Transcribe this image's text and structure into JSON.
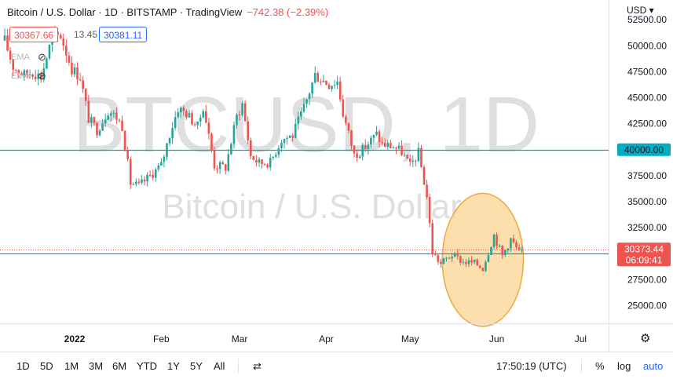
{
  "header": {
    "title": "Bitcoin / U.S. Dollar · 1D · BITSTAMP · TradingView",
    "change": "−742.38 (−2.39%)",
    "bid": "30367.66",
    "spread": "13.45",
    "ask": "30381.11",
    "currency": "USD ▾",
    "ma_labels": [
      "EMA",
      "EMA"
    ]
  },
  "watermark": {
    "symbol": "BTCUSD, 1D",
    "name": "Bitcoin / U.S. Dollar"
  },
  "bottom_bar": {
    "timeframes": [
      "1D",
      "5D",
      "1M",
      "3M",
      "6M",
      "YTD",
      "1Y",
      "5Y",
      "All"
    ],
    "clock": "17:50:19 (UTC)",
    "percent": "%",
    "log": "log",
    "auto": "auto"
  },
  "icons": {
    "eye": "eye-crossed-icon",
    "compare": "compare-icon",
    "settings": "gear-icon"
  },
  "colors": {
    "up": "#26a69a",
    "down": "#ef5350",
    "level": "#00acc1",
    "highlight_fill": "#fdd9a0",
    "highlight_stroke": "#f0a93e",
    "watermark": "#dcdcdc",
    "axis_text": "#131722",
    "price_label": "#ef5350"
  },
  "chart_data": {
    "type": "candlestick",
    "y_ticks": [
      25000,
      27500,
      30000,
      32500,
      35000,
      37500,
      40000,
      42500,
      45000,
      47500,
      50000,
      52500
    ],
    "y_tick_labels": [
      "25000.00",
      "27500.00",
      "30000.00",
      "32500.00",
      "35000.00",
      "37500.00",
      "40000.00",
      "42500.00",
      "45000.00",
      "47500.00",
      "50000.00",
      "52500.00"
    ],
    "ylim": [
      23300,
      54400
    ],
    "x_start": "2021-12-07",
    "x_end": "2022-07-11",
    "x_ticks": [
      {
        "date": "2022-01-01",
        "label": "2022"
      },
      {
        "date": "2022-02-01",
        "label": "Feb"
      },
      {
        "date": "2022-03-01",
        "label": "Mar"
      },
      {
        "date": "2022-04-01",
        "label": "Apr"
      },
      {
        "date": "2022-05-01",
        "label": "May"
      },
      {
        "date": "2022-06-01",
        "label": "Jun"
      },
      {
        "date": "2022-07-01",
        "label": "Jul"
      }
    ],
    "anchors": [
      [
        "2021-12-07",
        50500
      ],
      [
        "2021-12-10",
        48000
      ],
      [
        "2021-12-14",
        47200
      ],
      [
        "2021-12-17",
        47500
      ],
      [
        "2021-12-20",
        47000
      ],
      [
        "2021-12-24",
        50800
      ],
      [
        "2021-12-27",
        51000
      ],
      [
        "2021-12-31",
        47800
      ],
      [
        "2022-01-03",
        47000
      ],
      [
        "2022-01-06",
        43000
      ],
      [
        "2022-01-09",
        41900
      ],
      [
        "2022-01-11",
        42800
      ],
      [
        "2022-01-13",
        43800
      ],
      [
        "2022-01-16",
        43100
      ],
      [
        "2022-01-18",
        42300
      ],
      [
        "2022-01-21",
        36800
      ],
      [
        "2022-01-24",
        36500
      ],
      [
        "2022-01-28",
        37500
      ],
      [
        "2022-02-01",
        38500
      ],
      [
        "2022-02-04",
        41500
      ],
      [
        "2022-02-07",
        44000
      ],
      [
        "2022-02-10",
        43500
      ],
      [
        "2022-02-14",
        42200
      ],
      [
        "2022-02-16",
        44200
      ],
      [
        "2022-02-20",
        38500
      ],
      [
        "2022-02-24",
        38300
      ],
      [
        "2022-02-28",
        43200
      ],
      [
        "2022-03-02",
        44400
      ],
      [
        "2022-03-05",
        39400
      ],
      [
        "2022-03-08",
        38700
      ],
      [
        "2022-03-12",
        38800
      ],
      [
        "2022-03-16",
        41000
      ],
      [
        "2022-03-20",
        41400
      ],
      [
        "2022-03-24",
        44000
      ],
      [
        "2022-03-28",
        47200
      ],
      [
        "2022-04-02",
        46300
      ],
      [
        "2022-04-05",
        46600
      ],
      [
        "2022-04-07",
        43500
      ],
      [
        "2022-04-11",
        39500
      ],
      [
        "2022-04-14",
        40000
      ],
      [
        "2022-04-19",
        41500
      ],
      [
        "2022-04-21",
        40500
      ],
      [
        "2022-04-25",
        40300
      ],
      [
        "2022-04-28",
        39800
      ],
      [
        "2022-05-01",
        38400
      ],
      [
        "2022-05-04",
        39700
      ],
      [
        "2022-05-07",
        35500
      ],
      [
        "2022-05-09",
        30100
      ],
      [
        "2022-05-12",
        29000
      ],
      [
        "2022-05-13",
        29300
      ],
      [
        "2022-05-16",
        29900
      ],
      [
        "2022-05-20",
        29200
      ],
      [
        "2022-05-24",
        29100
      ],
      [
        "2022-05-27",
        28600
      ],
      [
        "2022-05-31",
        31800
      ],
      [
        "2022-06-03",
        29800
      ],
      [
        "2022-06-06",
        31400
      ],
      [
        "2022-06-09",
        30100
      ],
      [
        "2022-06-10",
        30373
      ]
    ],
    "levels": [
      40000,
      30000
    ],
    "level_labels": [
      "40000.00",
      "30000.00"
    ],
    "last_price": 30373.44,
    "last_price_label": "30373.44",
    "countdown": "06:09:41",
    "highlight": {
      "center_date": "2022-05-27",
      "center_price": 29400,
      "radius_days": 14.5,
      "radius_price": 6400
    },
    "watermark_text": "BTCUSD, 1D"
  }
}
